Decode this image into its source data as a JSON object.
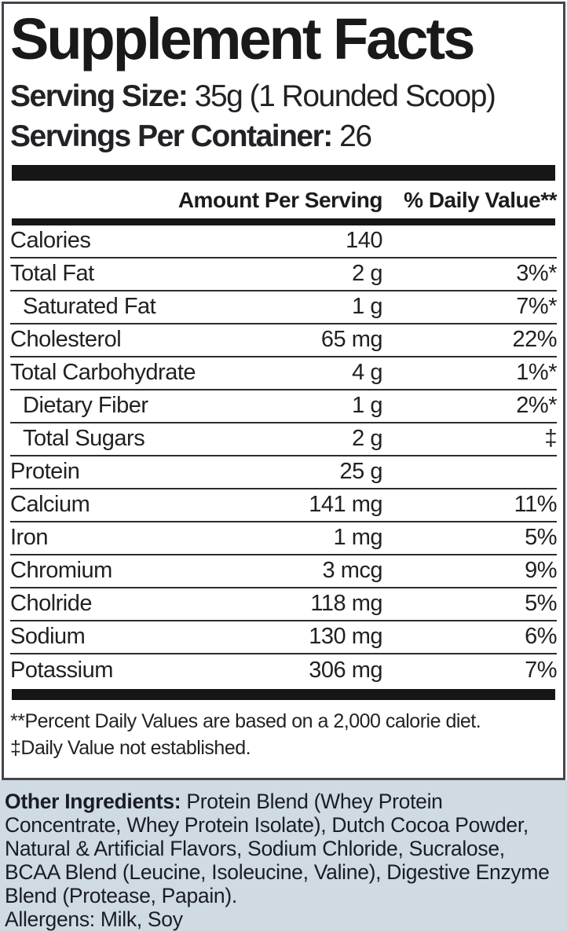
{
  "title": "Supplement Facts",
  "serving": {
    "size_label": "Serving Size:",
    "size_value": " 35g (1 Rounded Scoop)",
    "per_container_label": "Servings Per Container:",
    "per_container_value": " 26"
  },
  "table": {
    "amount_header": "Amount Per Serving",
    "dv_header": "% Daily Value**",
    "rows": [
      {
        "label": "Calories",
        "amount": "140",
        "dv": "",
        "indent": false
      },
      {
        "label": "Total Fat",
        "amount": "2 g",
        "dv": "3%*",
        "indent": false
      },
      {
        "label": "Saturated Fat",
        "amount": "1 g",
        "dv": "7%*",
        "indent": true
      },
      {
        "label": "Cholesterol",
        "amount": "65 mg",
        "dv": "22%",
        "indent": false
      },
      {
        "label": "Total Carbohydrate",
        "amount": "4 g",
        "dv": "1%*",
        "indent": false
      },
      {
        "label": "Dietary Fiber",
        "amount": "1 g",
        "dv": "2%*",
        "indent": true
      },
      {
        "label": "Total Sugars",
        "amount": "2 g",
        "dv": "‡",
        "indent": true
      },
      {
        "label": "Protein",
        "amount": "25 g",
        "dv": "",
        "indent": false
      },
      {
        "label": "Calcium",
        "amount": "141 mg",
        "dv": "11%",
        "indent": false
      },
      {
        "label": "Iron",
        "amount": "1 mg",
        "dv": "5%",
        "indent": false
      },
      {
        "label": "Chromium",
        "amount": "3 mcg",
        "dv": "9%",
        "indent": false
      },
      {
        "label": "Cholride",
        "amount": "118 mg",
        "dv": "5%",
        "indent": false
      },
      {
        "label": "Sodium",
        "amount": "130 mg",
        "dv": "6%",
        "indent": false
      },
      {
        "label": "Potassium",
        "amount": "306 mg",
        "dv": "7%",
        "indent": false
      }
    ]
  },
  "footnotes": [
    "**Percent Daily Values are based on a 2,000 calorie diet.",
    "‡Daily Value not established."
  ],
  "other_ingredients": {
    "label": "Other Ingredients:",
    "text": " Protein Blend (Whey Protein Concentrate, Whey Protein Isolate), Dutch Cocoa Powder, Natural & Artificial Flavors, Sodium Chloride, Sucralose, BCAA Blend (Leucine, Isoleucine, Valine), Digestive Enzyme Blend (Protease, Papain).",
    "allergens": "Allergens: Milk, Soy"
  },
  "colors": {
    "text": "#1d1d20",
    "panel_bg": "#cfdae2",
    "bar": "#161618",
    "border": "#45454c"
  }
}
